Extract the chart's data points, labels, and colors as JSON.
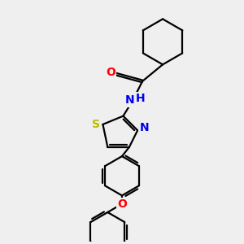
{
  "bg_color": "#efefef",
  "bond_color": "#000000",
  "bond_lw": 1.6,
  "atom_labels": {
    "O_carbonyl": {
      "text": "O",
      "color": "#ff0000",
      "fontsize": 10
    },
    "N_amide": {
      "text": "N",
      "color": "#0000ee",
      "fontsize": 10
    },
    "H_amide": {
      "text": "H",
      "color": "#0000ee",
      "fontsize": 10
    },
    "N_thiazole": {
      "text": "N",
      "color": "#0000ee",
      "fontsize": 10
    },
    "S_thiazole": {
      "text": "S",
      "color": "#bbbb00",
      "fontsize": 10
    },
    "O_ether": {
      "text": "O",
      "color": "#ff0000",
      "fontsize": 10
    }
  }
}
